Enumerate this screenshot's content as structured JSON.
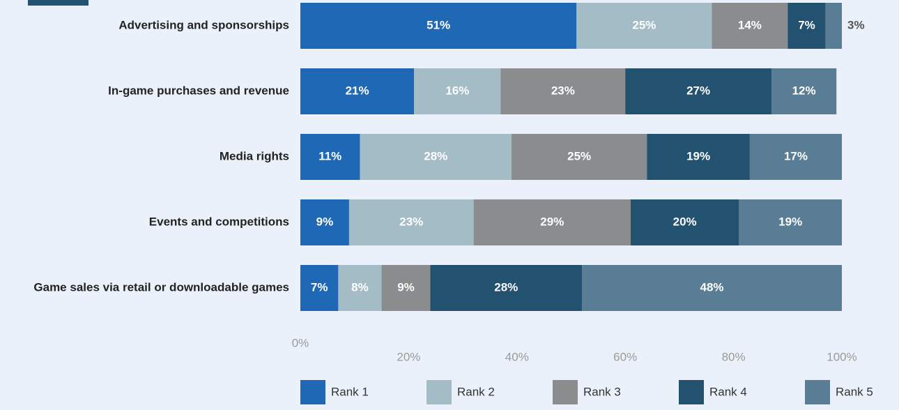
{
  "chart_data": {
    "type": "stacked-bar-horizontal",
    "categories": [
      "Advertising and sponsorships",
      "In-game purchases and revenue",
      "Media rights",
      "Events and competitions",
      "Game sales via retail or downloadable games"
    ],
    "series": [
      {
        "name": "Rank 1",
        "color": "#1f68b5",
        "values": [
          51,
          21,
          11,
          9,
          7
        ],
        "value_labels": [
          "51%",
          "21%",
          "11%",
          "9%",
          "7%"
        ]
      },
      {
        "name": "Rank 2",
        "color": "#a3bcc6",
        "values": [
          25,
          16,
          28,
          23,
          8
        ],
        "value_labels": [
          "25%",
          "16%",
          "28%",
          "23%",
          "8%"
        ]
      },
      {
        "name": "Rank 3",
        "color": "#8a8c8e",
        "values": [
          14,
          23,
          25,
          29,
          9
        ],
        "value_labels": [
          "14%",
          "23%",
          "25%",
          "29%",
          "9%"
        ]
      },
      {
        "name": "Rank 4",
        "color": "#235170",
        "values": [
          7,
          27,
          19,
          20,
          28
        ],
        "value_labels": [
          "7%",
          "27%",
          "19%",
          "20%",
          "28%"
        ]
      },
      {
        "name": "Rank 5",
        "color": "#587d95",
        "values": [
          3,
          12,
          17,
          19,
          48
        ],
        "value_labels": [
          "3%",
          "12%",
          "17%",
          "19%",
          "48%"
        ]
      }
    ],
    "xlim": [
      0,
      100
    ],
    "xticks": [
      {
        "value": 0,
        "label": "0%"
      },
      {
        "value": 20,
        "label": "20%"
      },
      {
        "value": 40,
        "label": "40%"
      },
      {
        "value": 60,
        "label": "60%"
      },
      {
        "value": 80,
        "label": "80%"
      },
      {
        "value": 100,
        "label": "100%"
      }
    ],
    "legend": "bottom"
  }
}
